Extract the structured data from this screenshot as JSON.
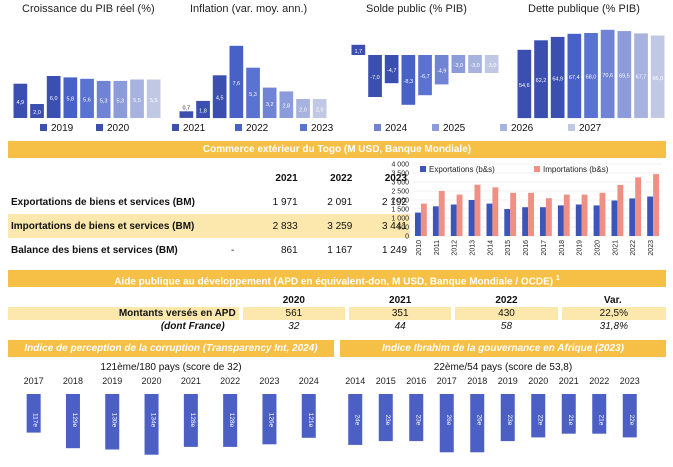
{
  "colors": {
    "band": "#f6c046",
    "highlight": "#fce8ad",
    "blue_scale": [
      "#3b4fb0",
      "#4761c7",
      "#5a72d1",
      "#7183d4",
      "#8c9bd9",
      "#a7b2de",
      "#c1c8e4"
    ],
    "export_color": "#3c55b8",
    "import_color": "#f08f84",
    "corruption_bar": "#4b5fc4"
  },
  "chart_data": [
    {
      "type": "bar",
      "title": "Croissance du PIB réel (%)",
      "categories": [
        "2019",
        "2020",
        "2021",
        "2022",
        "2023",
        "2024",
        "2025",
        "2026",
        "2027"
      ],
      "values": [
        4.9,
        2.0,
        6.0,
        5.8,
        5.6,
        5.3,
        5.3,
        5.5,
        5.5
      ],
      "labels": [
        "4,9",
        "2,0",
        "6,0",
        "5,8",
        "5,6",
        "5,3",
        "5,3",
        "5,5",
        "5,5"
      ]
    },
    {
      "type": "bar",
      "title": "Inflation (var. moy. ann.)",
      "categories": [
        "2019",
        "2020",
        "2021",
        "2022",
        "2023",
        "2024",
        "2025",
        "2026",
        "2027"
      ],
      "values": [
        0.7,
        1.8,
        4.5,
        7.6,
        5.3,
        3.2,
        2.8,
        2.0,
        2.0
      ],
      "labels": [
        "0,7",
        "1,8",
        "4,5",
        "7,6",
        "5,3",
        "3,2",
        "2,8",
        "2,0",
        "2,0"
      ]
    },
    {
      "type": "bar",
      "title": "Solde public (% PIB)",
      "categories": [
        "2019",
        "2020",
        "2021",
        "2022",
        "2023",
        "2024",
        "2025",
        "2026",
        "2027"
      ],
      "values": [
        1.7,
        -7.0,
        -4.7,
        -8.3,
        -6.7,
        -4.9,
        -3.0,
        -3.0,
        -3.0
      ],
      "labels": [
        "1,7",
        "-7,0",
        "-4,7",
        "-8,3",
        "-6,7",
        "-4,9",
        "-3,0",
        "-3,0",
        "-3,0"
      ]
    },
    {
      "type": "bar",
      "title": "Dette publique (% PIB)",
      "categories": [
        "2019",
        "2020",
        "2021",
        "2022",
        "2023",
        "2024",
        "2025",
        "2026",
        "2027"
      ],
      "values": [
        54.6,
        62.2,
        64.9,
        67.4,
        68.0,
        70.6,
        69.5,
        67.7,
        66.0
      ],
      "labels": [
        "54,6",
        "62,2",
        "64,9",
        "67,4",
        "68,0",
        "70,6",
        "69,5",
        "67,7",
        "66,0"
      ]
    },
    {
      "type": "bar",
      "title": "",
      "x": [
        "2010",
        "2011",
        "2012",
        "2013",
        "2014",
        "2015",
        "2016",
        "2017",
        "2018",
        "2019",
        "2020",
        "2021",
        "2022",
        "2023"
      ],
      "ylim": [
        0,
        4000
      ],
      "yticks": [
        "0",
        "500",
        "1 000",
        "1 500",
        "2 000",
        "2 500",
        "3 000",
        "3 500",
        "4 000"
      ],
      "series": [
        {
          "name": "Exportations (b&s)",
          "values": [
            1300,
            1650,
            1750,
            2000,
            1800,
            1500,
            1600,
            1600,
            1700,
            1750,
            1700,
            1971,
            2091,
            2192
          ]
        },
        {
          "name": "Importations (b&s)",
          "values": [
            1800,
            2500,
            2300,
            2850,
            2700,
            2400,
            2400,
            2100,
            2300,
            2300,
            2400,
            2833,
            3259,
            3441
          ]
        }
      ]
    },
    {
      "type": "bar",
      "title": "Indice de perception de la corruption (Transparency Int, 2024)",
      "subtitle": "121ème/180 pays (score de 32)",
      "categories": [
        "2017",
        "2018",
        "2019",
        "2020",
        "2021",
        "2022",
        "2023",
        "2024"
      ],
      "values": [
        117,
        129,
        130,
        134,
        128,
        128,
        126,
        121
      ],
      "labels": [
        "117e",
        "129e",
        "130e",
        "134e",
        "128e",
        "128e",
        "126e",
        "121e"
      ]
    },
    {
      "type": "bar",
      "title": "Indice Ibrahim de la gouvernance en Afrique (2023)",
      "subtitle": "22ème/54 pays (score de 53,8)",
      "categories": [
        "2014",
        "2015",
        "2016",
        "2017",
        "2018",
        "2019",
        "2020",
        "2021",
        "2022",
        "2023"
      ],
      "values": [
        24,
        23,
        23,
        26,
        26,
        23,
        22,
        21,
        21,
        22
      ],
      "labels": [
        "24e",
        "23e",
        "23e",
        "26e",
        "26e",
        "23e",
        "22e",
        "21e",
        "21e",
        "22e"
      ]
    }
  ],
  "macro_legend": [
    "2019",
    "2020",
    "2021",
    "2022",
    "2023",
    "2024",
    "2025",
    "2026",
    "2027"
  ],
  "trade": {
    "title": "Commerce extérieur du Togo (M USD, Banque Mondiale)",
    "years": [
      "2021",
      "2022",
      "2023"
    ],
    "rows": [
      {
        "label": "Exportations de biens et services (BM)",
        "prefix": "",
        "values": [
          "1 971",
          "2 091",
          "2 192"
        ]
      },
      {
        "label": "Importations de biens et services (BM)",
        "prefix": "",
        "values": [
          "2 833",
          "3 259",
          "3 441"
        ]
      },
      {
        "label": "Balance des biens et services (BM)",
        "prefix": "-",
        "values": [
          "861",
          "1 167",
          "1 249"
        ]
      }
    ]
  },
  "apd": {
    "title": "Aide publique au développement (APD en équivalent-don, M USD, Banque Mondiale / OCDE)",
    "sup": "1",
    "headers": [
      "2020",
      "2021",
      "2022",
      "Var."
    ],
    "rows": [
      {
        "label": "Montants versés en APD",
        "values": [
          "561",
          "351",
          "430",
          "22,5%"
        ]
      },
      {
        "label": "(dont France)",
        "values": [
          "32",
          "44",
          "58",
          "31,8%"
        ]
      }
    ]
  }
}
